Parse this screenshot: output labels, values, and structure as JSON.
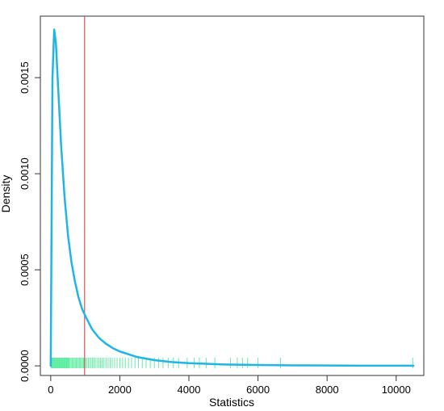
{
  "chart_data": {
    "type": "line",
    "title": "",
    "xlabel": "Statistics",
    "ylabel": "Density",
    "xlim": [
      -300,
      10800
    ],
    "ylim": [
      -5e-05,
      0.00182
    ],
    "x_ticks": [
      0,
      2000,
      4000,
      6000,
      8000,
      10000
    ],
    "x_tick_labels": [
      "0",
      "2000",
      "4000",
      "6000",
      "8000",
      "10000"
    ],
    "y_ticks": [
      0,
      0.0005,
      0.001,
      0.0015
    ],
    "y_tick_labels": [
      "0.0000",
      "0.0005",
      "0.0010",
      "0.0015"
    ],
    "grid": false,
    "series": [
      {
        "color": "#1fb5e8",
        "x": [
          0,
          50,
          100,
          150,
          200,
          300,
          400,
          500,
          600,
          700,
          800,
          900,
          1000,
          1200,
          1400,
          1600,
          1800,
          2000,
          2500,
          3000,
          3500,
          4000,
          5000,
          6000,
          7000,
          8000,
          9000,
          10000,
          10500
        ],
        "y": [
          0.0,
          0.0015,
          0.00175,
          0.00168,
          0.0015,
          0.00115,
          0.00088,
          0.00068,
          0.00054,
          0.00044,
          0.00036,
          0.0003,
          0.00026,
          0.00019,
          0.000145,
          0.000115,
          9.2e-05,
          7.5e-05,
          4.6e-05,
          3e-05,
          2e-05,
          1.4e-05,
          7.5e-06,
          4.5e-06,
          2.8e-06,
          1.8e-06,
          1.2e-06,
          8e-07,
          7e-07
        ]
      }
    ],
    "vline": {
      "x": 980,
      "color": "#d9534f"
    },
    "rug": {
      "color": "#3de88f",
      "x": [
        10,
        30,
        50,
        70,
        90,
        110,
        130,
        150,
        170,
        190,
        210,
        230,
        250,
        270,
        290,
        310,
        330,
        350,
        370,
        390,
        410,
        430,
        450,
        470,
        490,
        510,
        530,
        560,
        590,
        620,
        650,
        680,
        710,
        740,
        770,
        800,
        830,
        860,
        890,
        920,
        950,
        980,
        1010,
        1050,
        1090,
        1130,
        1170,
        1210,
        1250,
        1290,
        1340,
        1390,
        1440,
        1490,
        1540,
        1600,
        1660,
        1720,
        1780,
        1850,
        1920,
        2000,
        2080,
        2160,
        2250,
        2340,
        2440,
        2540,
        2650,
        2760,
        2880,
        3000,
        3120,
        3250,
        3400,
        3550,
        3700,
        3950,
        4150,
        4300,
        4500,
        4750,
        5200,
        5400,
        5550,
        5700,
        6000,
        6650,
        10480
      ]
    }
  }
}
